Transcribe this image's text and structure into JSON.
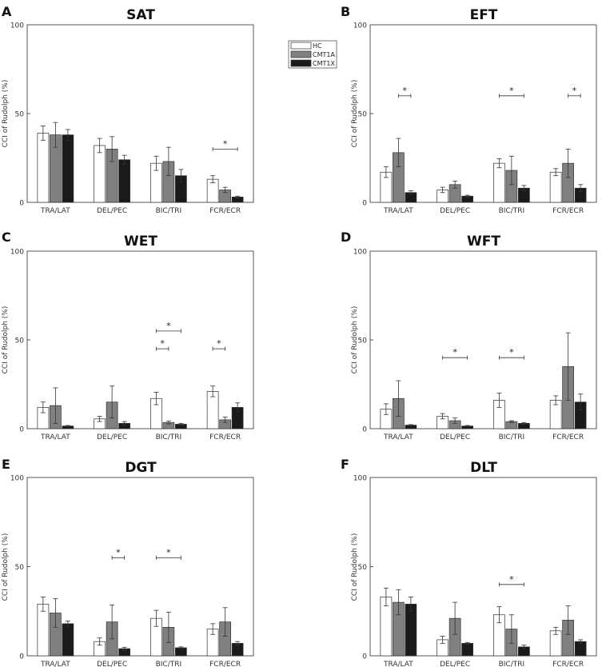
{
  "colors": {
    "HC": "#ffffff",
    "CMT1A": "#808080",
    "CMT1X": "#1a1a1a",
    "axis": "#555555",
    "edge": "#333333"
  },
  "legend": {
    "entries": [
      "HC",
      "CMT1A",
      "CMT1X"
    ],
    "placement": "top-right of panel A"
  },
  "chart_data": [
    {
      "type": "bar",
      "panel": "A",
      "title": "SAT",
      "ylabel": "CCI of Rudolph (%)",
      "ylim": [
        0,
        100
      ],
      "yticks": [
        0,
        50,
        100
      ],
      "categories": [
        "TRA/LAT",
        "DEL/PEC",
        "BIC/TRI",
        "FCR/ECR"
      ],
      "series": [
        {
          "name": "HC",
          "values": [
            39,
            32,
            22,
            13
          ],
          "errors": [
            4,
            4,
            4,
            2
          ]
        },
        {
          "name": "CMT1A",
          "values": [
            38,
            30,
            23,
            7
          ],
          "errors": [
            7,
            7,
            8,
            1.5
          ]
        },
        {
          "name": "CMT1X",
          "values": [
            38,
            24,
            15,
            3
          ],
          "errors": [
            3,
            2.5,
            3.5,
            0.5
          ]
        }
      ],
      "significance": [
        {
          "category": "FCR/ECR",
          "from": "HC",
          "to": "CMT1X",
          "y": 30,
          "label": "*"
        }
      ]
    },
    {
      "type": "bar",
      "panel": "B",
      "title": "EFT",
      "ylabel": "CCI of Rudolph (%)",
      "ylim": [
        0,
        100
      ],
      "yticks": [
        0,
        50,
        100
      ],
      "categories": [
        "TRA/LAT",
        "DEL/PEC",
        "BIC/TRI",
        "FCR/ECR"
      ],
      "series": [
        {
          "name": "HC",
          "values": [
            17,
            7,
            22,
            17
          ],
          "errors": [
            3,
            1.5,
            2.5,
            2
          ]
        },
        {
          "name": "CMT1A",
          "values": [
            28,
            10,
            18,
            22
          ],
          "errors": [
            8,
            2,
            8,
            8
          ]
        },
        {
          "name": "CMT1X",
          "values": [
            5.5,
            3.5,
            8,
            8
          ],
          "errors": [
            1,
            0.5,
            1.5,
            2
          ]
        }
      ],
      "significance": [
        {
          "category": "TRA/LAT",
          "from": "CMT1A",
          "to": "CMT1X",
          "y": 60,
          "label": "*"
        },
        {
          "category": "BIC/TRI",
          "from": "HC",
          "to": "CMT1X",
          "y": 60,
          "label": "*"
        },
        {
          "category": "FCR/ECR",
          "from": "CMT1A",
          "to": "CMT1X",
          "y": 60,
          "label": "*"
        }
      ]
    },
    {
      "type": "bar",
      "panel": "C",
      "title": "WET",
      "ylabel": "CCI of Rudolph (%)",
      "ylim": [
        0,
        100
      ],
      "yticks": [
        0,
        50,
        100
      ],
      "categories": [
        "TRA/LAT",
        "DEL/PEC",
        "BIC/TRI",
        "FCR/ECR"
      ],
      "series": [
        {
          "name": "HC",
          "values": [
            12,
            5.5,
            17,
            21
          ],
          "errors": [
            3,
            1.5,
            3.5,
            3
          ]
        },
        {
          "name": "CMT1A",
          "values": [
            13,
            15,
            3.5,
            5
          ],
          "errors": [
            10,
            9,
            0.8,
            1.5
          ]
        },
        {
          "name": "CMT1X",
          "values": [
            1.5,
            3,
            2.5,
            12
          ],
          "errors": [
            0.3,
            1,
            0.5,
            2.5
          ]
        }
      ],
      "significance": [
        {
          "category": "BIC/TRI",
          "from": "HC",
          "to": "CMT1X",
          "y": 55,
          "label": "*"
        },
        {
          "category": "BIC/TRI",
          "from": "HC",
          "to": "CMT1A",
          "y": 45,
          "label": "*"
        },
        {
          "category": "FCR/ECR",
          "from": "HC",
          "to": "CMT1A",
          "y": 45,
          "label": "*"
        }
      ]
    },
    {
      "type": "bar",
      "panel": "D",
      "title": "WFT",
      "ylabel": "CCI of Rudolph (%)",
      "ylim": [
        0,
        100
      ],
      "yticks": [
        0,
        50,
        100
      ],
      "categories": [
        "TRA/LAT",
        "DEL/PEC",
        "BIC/TRI",
        "FCR/ECR"
      ],
      "series": [
        {
          "name": "HC",
          "values": [
            11,
            7,
            16,
            16
          ],
          "errors": [
            3,
            1.5,
            4,
            2.5
          ]
        },
        {
          "name": "CMT1A",
          "values": [
            17,
            4.5,
            4,
            35
          ],
          "errors": [
            10,
            1.5,
            0.5,
            19
          ]
        },
        {
          "name": "CMT1X",
          "values": [
            2,
            1.5,
            3,
            15
          ],
          "errors": [
            0.3,
            0.3,
            0.5,
            4.5
          ]
        }
      ],
      "significance": [
        {
          "category": "DEL/PEC",
          "from": "HC",
          "to": "CMT1X",
          "y": 40,
          "label": "*"
        },
        {
          "category": "BIC/TRI",
          "from": "HC",
          "to": "CMT1X",
          "y": 40,
          "label": "*"
        }
      ]
    },
    {
      "type": "bar",
      "panel": "E",
      "title": "DGT",
      "ylabel": "CCI of Rudolph (%)",
      "ylim": [
        0,
        100
      ],
      "yticks": [
        0,
        50,
        100
      ],
      "categories": [
        "TRA/LAT",
        "DEL/PEC",
        "BIC/TRI",
        "FCR/ECR"
      ],
      "series": [
        {
          "name": "HC",
          "values": [
            29,
            8,
            21,
            15
          ],
          "errors": [
            4,
            2,
            4.5,
            3
          ]
        },
        {
          "name": "CMT1A",
          "values": [
            24,
            19,
            16,
            19
          ],
          "errors": [
            8,
            9.5,
            8.5,
            8
          ]
        },
        {
          "name": "CMT1X",
          "values": [
            18,
            4,
            4.5,
            7
          ],
          "errors": [
            1.5,
            0.8,
            0.5,
            1
          ]
        }
      ],
      "significance": [
        {
          "category": "DEL/PEC",
          "from": "CMT1A",
          "to": "CMT1X",
          "y": 55,
          "label": "*"
        },
        {
          "category": "BIC/TRI",
          "from": "HC",
          "to": "CMT1X",
          "y": 55,
          "label": "*"
        }
      ]
    },
    {
      "type": "bar",
      "panel": "F",
      "title": "DLT",
      "ylabel": "CCI of Rudolph (%)",
      "ylim": [
        0,
        100
      ],
      "yticks": [
        0,
        50,
        100
      ],
      "categories": [
        "TRA/LAT",
        "DEL/PEC",
        "BIC/TRI",
        "FCR/ECR"
      ],
      "series": [
        {
          "name": "HC",
          "values": [
            33,
            9,
            23,
            14
          ],
          "errors": [
            5,
            2,
            4.5,
            2
          ]
        },
        {
          "name": "CMT1A",
          "values": [
            30,
            21,
            15,
            20
          ],
          "errors": [
            7,
            9,
            8,
            8
          ]
        },
        {
          "name": "CMT1X",
          "values": [
            29,
            7,
            5,
            8
          ],
          "errors": [
            4,
            0.5,
            1,
            1
          ]
        }
      ],
      "significance": [
        {
          "category": "BIC/TRI",
          "from": "HC",
          "to": "CMT1X",
          "y": 40,
          "label": "*"
        }
      ]
    }
  ]
}
